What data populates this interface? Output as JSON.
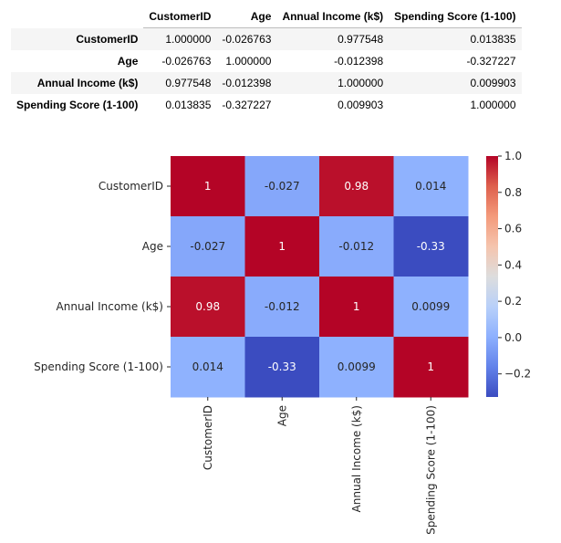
{
  "table": {
    "columns": [
      "CustomerID",
      "Age",
      "Annual Income (k$)",
      "Spending Score (1-100)"
    ],
    "rows": [
      {
        "label": "CustomerID",
        "cells": [
          "1.000000",
          "-0.026763",
          "0.977548",
          "0.013835"
        ]
      },
      {
        "label": "Age",
        "cells": [
          "-0.026763",
          "1.000000",
          "-0.012398",
          "-0.327227"
        ]
      },
      {
        "label": "Annual Income (k$)",
        "cells": [
          "0.977548",
          "-0.012398",
          "1.000000",
          "0.009903"
        ]
      },
      {
        "label": "Spending Score (1-100)",
        "cells": [
          "0.013835",
          "-0.327227",
          "0.009903",
          "1.000000"
        ]
      }
    ]
  },
  "chart_data": {
    "type": "heatmap",
    "colormap": "coolwarm",
    "x_categories": [
      "CustomerID",
      "Age",
      "Annual Income (k$)",
      "Spending Score (1-100)"
    ],
    "y_categories": [
      "CustomerID",
      "Age",
      "Annual Income (k$)",
      "Spending Score (1-100)"
    ],
    "values": [
      [
        1.0,
        -0.026763,
        0.977548,
        0.013835
      ],
      [
        -0.026763,
        1.0,
        -0.012398,
        -0.327227
      ],
      [
        0.977548,
        -0.012398,
        1.0,
        0.009903
      ],
      [
        0.013835,
        -0.327227,
        0.009903,
        1.0
      ]
    ],
    "annotations": [
      [
        "1",
        "-0.027",
        "0.98",
        "0.014"
      ],
      [
        "-0.027",
        "1",
        "-0.012",
        "-0.33"
      ],
      [
        "0.98",
        "-0.012",
        "1",
        "0.0099"
      ],
      [
        "0.014",
        "-0.33",
        "0.0099",
        "1"
      ]
    ],
    "colorbar": {
      "vmin": -0.327227,
      "vmax": 1.0,
      "ticks": [
        1.0,
        0.8,
        0.6,
        0.4,
        0.2,
        0.0,
        -0.2
      ],
      "tick_labels": [
        "1.0",
        "0.8",
        "0.6",
        "0.4",
        "0.2",
        "0.0",
        "−0.2"
      ]
    }
  }
}
